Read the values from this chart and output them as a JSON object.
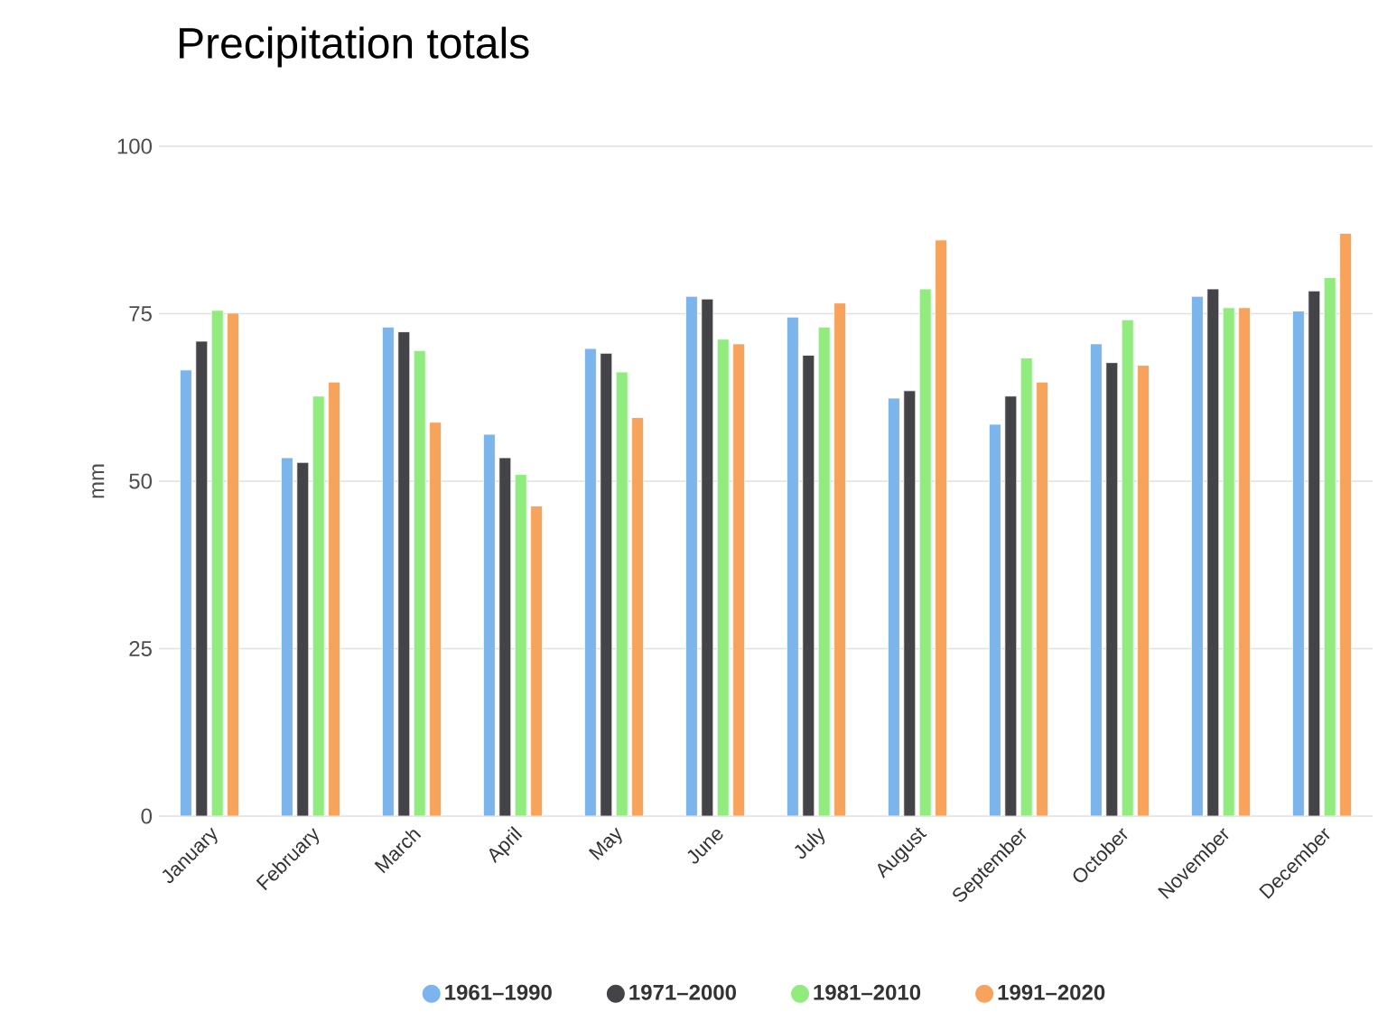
{
  "chart_data": {
    "type": "bar",
    "title": "Precipitation totals",
    "ylabel": "mm",
    "categories": [
      "January",
      "February",
      "March",
      "April",
      "May",
      "June",
      "July",
      "August",
      "September",
      "October",
      "November",
      "December"
    ],
    "series": [
      {
        "name": "1961–1990",
        "color": "#7cb5ec",
        "values": [
          66.6,
          53.5,
          73.0,
          57.0,
          69.8,
          77.6,
          74.5,
          62.4,
          58.5,
          70.5,
          77.6,
          75.4
        ]
      },
      {
        "name": "1971–2000",
        "color": "#434348",
        "values": [
          70.9,
          52.8,
          72.3,
          53.5,
          69.1,
          77.2,
          68.8,
          63.5,
          62.7,
          67.7,
          78.7,
          78.4
        ]
      },
      {
        "name": "1981–2010",
        "color": "#90ed7d",
        "values": [
          75.5,
          62.7,
          69.5,
          51.0,
          66.3,
          71.2,
          73.0,
          78.7,
          68.4,
          74.1,
          75.9,
          80.4
        ]
      },
      {
        "name": "1991–2020",
        "color": "#f7a35c",
        "values": [
          75.1,
          64.8,
          58.8,
          46.3,
          59.5,
          70.5,
          76.6,
          86.0,
          64.8,
          67.3,
          75.9,
          87.0
        ]
      }
    ],
    "ylim": [
      0,
      100
    ],
    "yticks": [
      0,
      25,
      50,
      75,
      100
    ],
    "grid": "y",
    "legend": "bottom",
    "marker": "circle"
  }
}
